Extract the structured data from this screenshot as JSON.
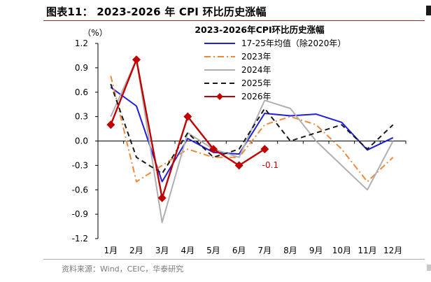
{
  "figure": {
    "caption": "图表11：   2023-2026 年 CPI 环比历史涨幅",
    "source": "资料来源：Wind，CEIC，华泰研究"
  },
  "chart_data": {
    "type": "line",
    "title": "2023-2026年CPI环比历史涨幅",
    "unit_label": "（%）",
    "categories": [
      "1月",
      "2月",
      "3月",
      "4月",
      "5月",
      "6月",
      "7月",
      "8月",
      "9月",
      "10月",
      "11月",
      "12月"
    ],
    "y_ticks": [
      "1.2",
      "0.9",
      "0.6",
      "0.3",
      "0.0",
      "-0.3",
      "-0.6",
      "-0.9",
      "-1.2"
    ],
    "ylim": [
      -1.2,
      1.2
    ],
    "grid": false,
    "legend_position": "top-right",
    "series": [
      {
        "name": "17-25年均值（除2020年）",
        "color": "#1f1fe0",
        "dash": "solid",
        "marker": "none",
        "values": [
          0.66,
          0.43,
          -0.5,
          0.03,
          -0.14,
          -0.16,
          0.34,
          0.31,
          0.33,
          0.23,
          -0.11,
          0.04
        ]
      },
      {
        "name": "2023年",
        "color": "#f0883a",
        "dash": "dashdot",
        "marker": "none",
        "values": [
          0.8,
          -0.5,
          -0.3,
          -0.1,
          -0.2,
          -0.2,
          0.2,
          0.3,
          0.2,
          -0.1,
          -0.5,
          -0.2
        ]
      },
      {
        "name": "2024年",
        "color": "#b0b0b0",
        "dash": "solid",
        "marker": "none",
        "values": [
          0.3,
          1.0,
          -1.0,
          0.1,
          -0.1,
          -0.2,
          0.5,
          0.4,
          0.0,
          -0.3,
          -0.6,
          0.0
        ]
      },
      {
        "name": "2025年",
        "color": "#1a1a1a",
        "dash": "dash",
        "marker": "none",
        "values": [
          0.7,
          -0.2,
          -0.4,
          0.1,
          -0.2,
          -0.1,
          0.4,
          0.0,
          0.1,
          0.2,
          -0.1,
          0.2
        ]
      },
      {
        "name": "2026年",
        "color": "#c00000",
        "dash": "solid",
        "marker": "diamond",
        "values": [
          0.2,
          1.0,
          -0.7,
          0.3,
          -0.1,
          -0.3,
          -0.1,
          null,
          null,
          null,
          null,
          null
        ]
      }
    ],
    "annotations": [
      {
        "series": "2026年",
        "category": "7月",
        "text": "-0.1"
      }
    ]
  }
}
